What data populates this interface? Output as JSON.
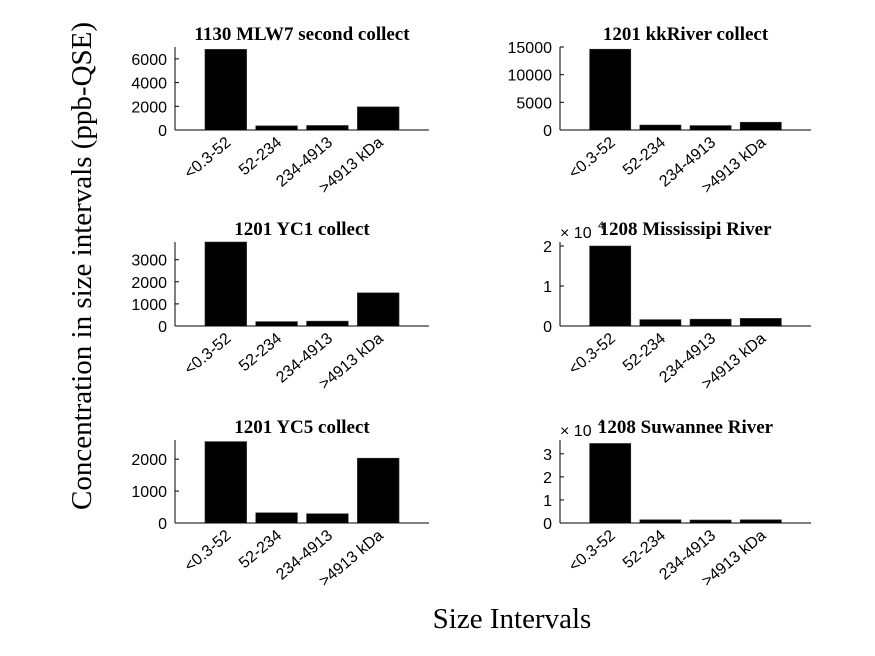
{
  "figure": {
    "ylabel": "Concentration in size intervals (ppb-QSE)",
    "xlabel": "Size Intervals"
  },
  "chart_data": [
    {
      "type": "bar",
      "title": "1130 MLW7 second collect",
      "categories": [
        "<0.3-52",
        "52-234",
        "234-4913",
        ">4913 kDa"
      ],
      "values": [
        6800,
        350,
        380,
        1950
      ],
      "ylim": [
        0,
        7000
      ],
      "yticks": [
        0,
        2000,
        4000,
        6000
      ],
      "ytick_labels": [
        "0",
        "2000",
        "4000",
        "6000"
      ],
      "exponent_label": null,
      "bar_color": "#000000"
    },
    {
      "type": "bar",
      "title": "1201 kkRiver collect",
      "categories": [
        "<0.3-52",
        "52-234",
        "234-4913",
        ">4913 kDa"
      ],
      "values": [
        14600,
        900,
        800,
        1400
      ],
      "ylim": [
        0,
        15000
      ],
      "yticks": [
        0,
        5000,
        10000,
        15000
      ],
      "ytick_labels": [
        "0",
        "5000",
        "10000",
        "15000"
      ],
      "exponent_label": null,
      "bar_color": "#000000"
    },
    {
      "type": "bar",
      "title": "1201 YC1 collect",
      "categories": [
        "<0.3-52",
        "52-234",
        "234-4913",
        ">4913 kDa"
      ],
      "values": [
        3800,
        200,
        220,
        1500
      ],
      "ylim": [
        0,
        3800
      ],
      "yticks": [
        0,
        1000,
        2000,
        3000
      ],
      "ytick_labels": [
        "0",
        "1000",
        "2000",
        "3000"
      ],
      "exponent_label": null,
      "bar_color": "#000000"
    },
    {
      "type": "bar",
      "title": "1208 Mississipi River",
      "categories": [
        "<0.3-52",
        "52-234",
        "234-4913",
        ">4913 kDa"
      ],
      "values": [
        20000,
        1600,
        1700,
        1900
      ],
      "ylim": [
        0,
        21000
      ],
      "yticks": [
        0,
        10000,
        20000
      ],
      "ytick_labels": [
        "0",
        "1",
        "2"
      ],
      "exponent_label": "× 10",
      "exponent_power": "4",
      "bar_color": "#000000"
    },
    {
      "type": "bar",
      "title": "1201 YC5 collect",
      "categories": [
        "<0.3-52",
        "52-234",
        "234-4913",
        ">4913 kDa"
      ],
      "values": [
        2550,
        320,
        290,
        2030
      ],
      "ylim": [
        0,
        2600
      ],
      "yticks": [
        0,
        1000,
        2000
      ],
      "ytick_labels": [
        "0",
        "1000",
        "2000"
      ],
      "exponent_label": null,
      "bar_color": "#000000"
    },
    {
      "type": "bar",
      "title": "1208 Suwannee River",
      "categories": [
        "<0.3-52",
        "52-234",
        "234-4913",
        ">4913 kDa"
      ],
      "values": [
        34500,
        1400,
        1300,
        1400
      ],
      "ylim": [
        0,
        36000
      ],
      "yticks": [
        0,
        10000,
        20000,
        30000
      ],
      "ytick_labels": [
        "0",
        "1",
        "2",
        "3"
      ],
      "exponent_label": "× 10",
      "exponent_power": "4",
      "bar_color": "#000000"
    }
  ]
}
